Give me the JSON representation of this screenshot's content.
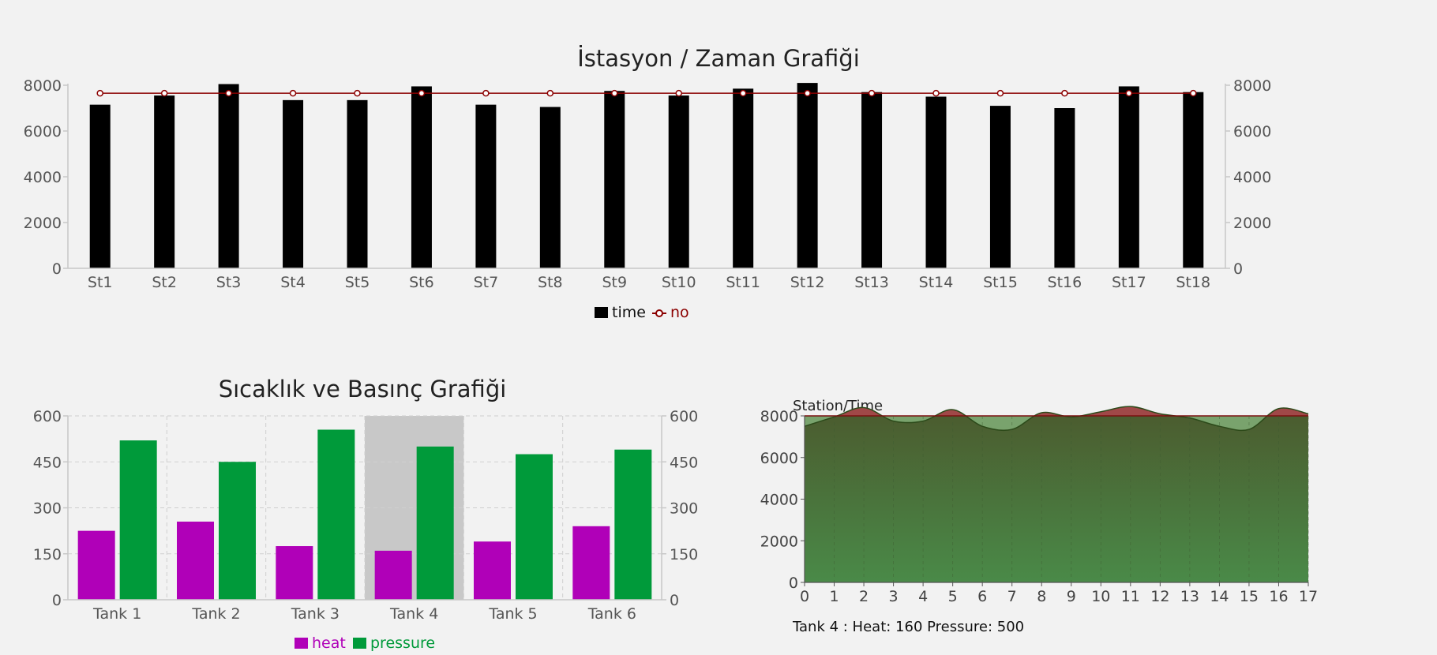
{
  "colors": {
    "time_bar": "#000000",
    "no_line": "#8b0000",
    "heat": "#b000b8",
    "pressure": "#009a3a",
    "hover_band": "#c8c8c8",
    "area_red": "#a04848",
    "area_green_top": "#4a5e30",
    "area_green_bottom": "#4a8a48"
  },
  "chart_data": [
    {
      "type": "bar",
      "title": "İstasyon / Zaman Grafiği",
      "categories": [
        "St1",
        "St2",
        "St3",
        "St4",
        "St5",
        "St6",
        "St7",
        "St8",
        "St9",
        "St10",
        "St11",
        "St12",
        "St13",
        "St14",
        "St15",
        "St16",
        "St17",
        "St18"
      ],
      "series": [
        {
          "name": "time",
          "type": "bar",
          "values": [
            7150,
            7550,
            8050,
            7350,
            7350,
            7950,
            7150,
            7050,
            7750,
            7550,
            7850,
            8100,
            7700,
            7500,
            7100,
            7000,
            7950,
            7700
          ]
        },
        {
          "name": "no",
          "type": "line",
          "values": [
            7650,
            7650,
            7650,
            7650,
            7650,
            7650,
            7650,
            7650,
            7650,
            7650,
            7650,
            7650,
            7650,
            7650,
            7650,
            7650,
            7650,
            7650
          ]
        }
      ],
      "y_ticks": [
        "0",
        "2000",
        "4000",
        "6000",
        "8000"
      ],
      "ylim": [
        0,
        8000
      ],
      "legend": "bottom-center"
    },
    {
      "type": "bar",
      "title": "Sıcaklık ve Basınç Grafiği",
      "categories": [
        "Tank 1",
        "Tank 2",
        "Tank 3",
        "Tank 4",
        "Tank 5",
        "Tank 6"
      ],
      "series": [
        {
          "name": "heat",
          "values": [
            225,
            255,
            175,
            160,
            190,
            240
          ]
        },
        {
          "name": "pressure",
          "values": [
            520,
            450,
            555,
            500,
            475,
            490
          ]
        }
      ],
      "y_ticks": [
        "0",
        "150",
        "300",
        "450",
        "600"
      ],
      "ylim": [
        0,
        600
      ],
      "highlighted_category": "Tank 4",
      "grid": true,
      "legend": "bottom-center"
    },
    {
      "type": "area",
      "title": "Station/Time",
      "x": [
        "0",
        "1",
        "2",
        "3",
        "4",
        "5",
        "6",
        "7",
        "8",
        "9",
        "10",
        "11",
        "12",
        "13",
        "14",
        "15",
        "16",
        "17"
      ],
      "values": [
        7500,
        7950,
        8400,
        7750,
        7750,
        8300,
        7500,
        7350,
        8150,
        7950,
        8200,
        8450,
        8100,
        7900,
        7500,
        7350,
        8350,
        8100
      ],
      "threshold": 8000,
      "y_ticks": [
        "0",
        "2000",
        "4000",
        "6000",
        "8000"
      ],
      "ylim": [
        0,
        8000
      ],
      "grid": true
    }
  ],
  "legend1": {
    "time": "time",
    "no": "no"
  },
  "legend2": {
    "heat": "heat",
    "pressure": "pressure"
  },
  "status_text": "Tank 4 : Heat: 160 Pressure: 500"
}
